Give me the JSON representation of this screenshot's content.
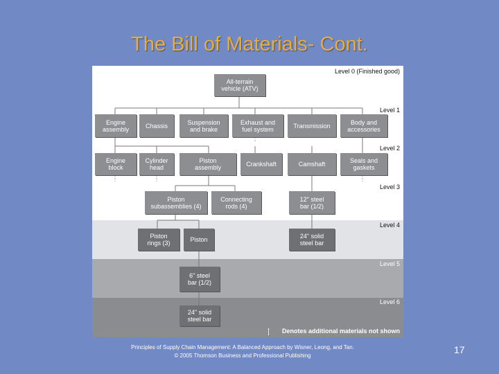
{
  "slide": {
    "title": "The Bill of Materials- Cont.",
    "footer_line1": "Principles of Supply Chain Management: A Balanced Approach by Wisner, Leong, and Tan.",
    "footer_line2": "© 2005 Thomson Business and Professional Publishing",
    "page_number": "17"
  },
  "diagram": {
    "levels": [
      "Level 0\n(Finished good)",
      "Level 1",
      "Level 2",
      "Level 3",
      "Level 4",
      "Level 5",
      "Level 6"
    ],
    "nodes": {
      "atv": "All-terrain\nvehicle (ATV)",
      "engine_assembly": "Engine\nassembly",
      "chassis": "Chassis",
      "suspension": "Suspension\nand brake",
      "exhaust": "Exhaust and\nfuel system",
      "transmission": "Transmission",
      "body": "Body and\naccessories",
      "engine_block": "Engine\nblock",
      "cylinder_head": "Cylinder\nhead",
      "piston_assembly": "Piston\nassembly",
      "crankshaft": "Crankshaft",
      "camshaft": "Camshaft",
      "seals": "Seals and\ngaskets",
      "piston_subassemblies": "Piston\nsubassemblies (4)",
      "connecting_rods": "Connecting\nrods (4)",
      "steel_bar_12": "12\" steel\nbar (1/2)",
      "piston_rings": "Piston\nrings (3)",
      "piston": "Piston",
      "solid_bar_24a": "24\" solid\nsteel bar",
      "steel_bar_6": "6\" steel\nbar (1/2)",
      "solid_bar_24b": "24\" solid\nsteel bar"
    },
    "note": "Denotes additional materials not shown"
  }
}
